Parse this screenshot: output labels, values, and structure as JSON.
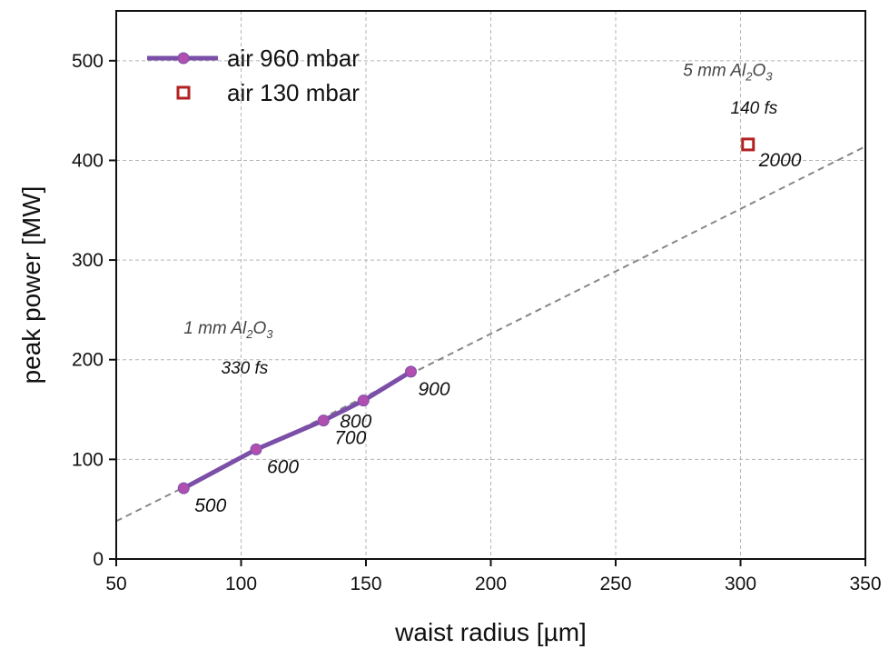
{
  "chart_data": {
    "type": "line",
    "xlabel": "waist radius [µm]",
    "ylabel": "peak power [MW]",
    "xlim": [
      50,
      350
    ],
    "ylim": [
      0,
      550
    ],
    "xticks": [
      50,
      100,
      150,
      200,
      250,
      300,
      350
    ],
    "yticks": [
      0,
      100,
      200,
      300,
      400,
      500
    ],
    "xtick_labels": [
      "50",
      "100",
      "150",
      "200",
      "250",
      "300",
      "350"
    ],
    "ytick_labels": [
      "0",
      "100",
      "200",
      "300",
      "400",
      "500"
    ],
    "grid": true,
    "legend_position": "top-left",
    "series": [
      {
        "name": "air 960 mbar",
        "marker": "circle",
        "color": "#7b4fa8",
        "points": [
          {
            "x": 77,
            "y": 71,
            "label": "500"
          },
          {
            "x": 106,
            "y": 110,
            "label": "600"
          },
          {
            "x": 133,
            "y": 139,
            "label": "700"
          },
          {
            "x": 149,
            "y": 159,
            "label": "800"
          },
          {
            "x": 168,
            "y": 188,
            "label": "900"
          }
        ]
      },
      {
        "name": "air 130 mbar",
        "marker": "open-square",
        "color": "#b22222",
        "points": [
          {
            "x": 303,
            "y": 416,
            "label": "2000"
          }
        ]
      }
    ],
    "trend_line": {
      "style": "dashed",
      "color": "#888888",
      "from": {
        "x": 50,
        "y": 38
      },
      "to": {
        "x": 350,
        "y": 414
      }
    },
    "annotations": [
      {
        "id": "crystal-1",
        "x": 77,
        "y": 226,
        "prefix": "1 mm Al",
        "sub1": "2",
        "mid": "O",
        "sub2": "3"
      },
      {
        "id": "pulse-1",
        "x": 92,
        "y": 186,
        "text": "330 fs"
      },
      {
        "id": "crystal-2",
        "x": 277,
        "y": 485,
        "prefix": "5 mm Al",
        "sub1": "2",
        "mid": "O",
        "sub2": "3"
      },
      {
        "id": "pulse-2",
        "x": 296,
        "y": 447,
        "text": "140 fs"
      }
    ]
  }
}
